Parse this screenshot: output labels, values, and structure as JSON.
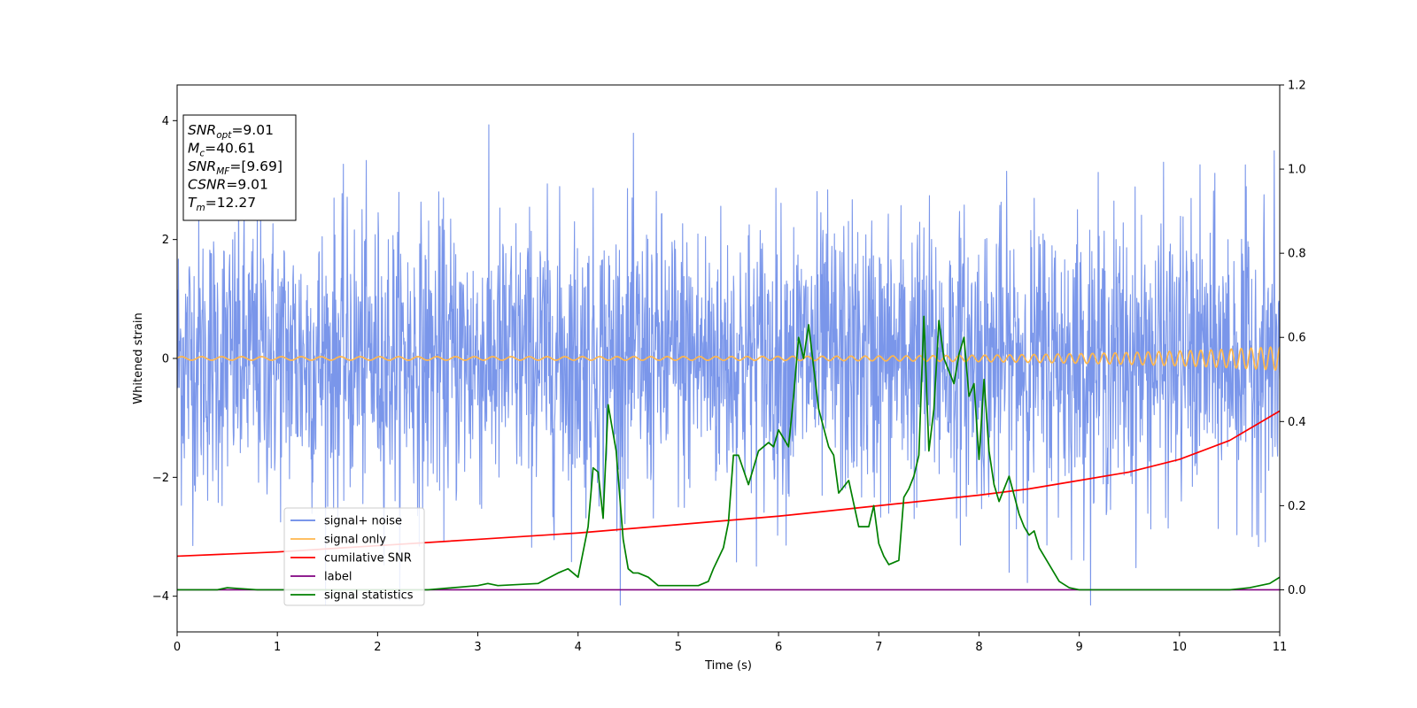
{
  "chart_data": {
    "type": "line",
    "title": "",
    "xlabel": "Time (s)",
    "ylabel": "Whitened strain",
    "xlim": [
      0,
      11
    ],
    "ylim": [
      -4.6,
      4.6
    ],
    "y2lim": [
      -0.1,
      1.2
    ],
    "xticks": [
      "0",
      "1",
      "2",
      "3",
      "4",
      "5",
      "6",
      "7",
      "8",
      "9",
      "10",
      "11"
    ],
    "xtick_values": [
      0,
      1,
      2,
      3,
      4,
      5,
      6,
      7,
      8,
      9,
      10,
      11
    ],
    "yticks": [
      "−4",
      "−2",
      "0",
      "2",
      "4"
    ],
    "ytick_values": [
      -4,
      -2,
      0,
      2,
      4
    ],
    "y2ticks": [
      "0.0",
      "0.2",
      "0.4",
      "0.6",
      "0.8",
      "1.0",
      "1.2"
    ],
    "y2tick_values": [
      0,
      0.2,
      0.4,
      0.6,
      0.8,
      1.0,
      1.2
    ],
    "grid": false,
    "legend_position": "lower-left",
    "info_box": {
      "lines": [
        {
          "var": "SNR",
          "sub": "opt",
          "text": "=9.01"
        },
        {
          "var": "M",
          "sub": "c",
          "text": "=40.61"
        },
        {
          "var": "SNR",
          "sub": "MF",
          "text": "=[9.69]"
        },
        {
          "var": "CSNR",
          "sub": "",
          "text": "=9.01"
        },
        {
          "var": "T",
          "sub": "m",
          "text": "=12.27"
        }
      ]
    },
    "series": [
      {
        "name": "signal+ noise",
        "color": "#4169e1",
        "axis": "left",
        "kind": "noise",
        "amplitude_sd": 1.2,
        "min": -4.15,
        "max": 4.15
      },
      {
        "name": "signal only",
        "color": "#ffb74d",
        "axis": "left",
        "kind": "chirp",
        "amplitude_start": 0.03,
        "amplitude_end": 0.2,
        "freq_start": 5,
        "freq_end": 10.5
      },
      {
        "name": "cumilative SNR",
        "color": "#ff0000",
        "axis": "right",
        "x": [
          0,
          1,
          2,
          3,
          4,
          5,
          6,
          7,
          8,
          8.5,
          9,
          9.5,
          10,
          10.5,
          11
        ],
        "y": [
          0.08,
          0.09,
          0.105,
          0.12,
          0.135,
          0.155,
          0.175,
          0.2,
          0.225,
          0.24,
          0.26,
          0.28,
          0.31,
          0.355,
          0.425
        ]
      },
      {
        "name": "label",
        "color": "#800080",
        "axis": "right",
        "x": [
          0,
          11
        ],
        "y": [
          0,
          0
        ]
      },
      {
        "name": "signal statistics",
        "color": "#008000",
        "axis": "right",
        "x": [
          0,
          0.4,
          0.5,
          0.8,
          1.0,
          2.0,
          2.5,
          3.0,
          3.1,
          3.2,
          3.6,
          3.8,
          3.9,
          4.0,
          4.1,
          4.15,
          4.2,
          4.25,
          4.3,
          4.38,
          4.45,
          4.5,
          4.55,
          4.6,
          4.7,
          4.8,
          5.2,
          5.3,
          5.35,
          5.45,
          5.5,
          5.55,
          5.6,
          5.7,
          5.8,
          5.85,
          5.9,
          5.95,
          6.0,
          6.1,
          6.15,
          6.2,
          6.25,
          6.3,
          6.4,
          6.5,
          6.55,
          6.6,
          6.7,
          6.8,
          6.9,
          6.95,
          7.0,
          7.05,
          7.1,
          7.15,
          7.2,
          7.25,
          7.3,
          7.35,
          7.4,
          7.45,
          7.5,
          7.55,
          7.6,
          7.65,
          7.7,
          7.75,
          7.8,
          7.85,
          7.9,
          7.95,
          8.0,
          8.05,
          8.1,
          8.15,
          8.2,
          8.3,
          8.4,
          8.45,
          8.5,
          8.55,
          8.6,
          8.7,
          8.8,
          8.9,
          9.0,
          9.1,
          9.5,
          10.0,
          10.5,
          10.7,
          10.9,
          11.0
        ],
        "y": [
          0,
          0,
          0.005,
          0,
          0,
          0,
          0,
          0.01,
          0.015,
          0.01,
          0.015,
          0.04,
          0.05,
          0.03,
          0.15,
          0.29,
          0.28,
          0.17,
          0.44,
          0.33,
          0.12,
          0.05,
          0.04,
          0.04,
          0.03,
          0.01,
          0.01,
          0.02,
          0.05,
          0.1,
          0.16,
          0.32,
          0.32,
          0.25,
          0.33,
          0.34,
          0.35,
          0.34,
          0.38,
          0.34,
          0.46,
          0.6,
          0.55,
          0.63,
          0.43,
          0.34,
          0.32,
          0.23,
          0.26,
          0.15,
          0.15,
          0.2,
          0.11,
          0.08,
          0.06,
          0.065,
          0.07,
          0.22,
          0.24,
          0.27,
          0.32,
          0.65,
          0.33,
          0.43,
          0.64,
          0.55,
          0.52,
          0.49,
          0.56,
          0.6,
          0.46,
          0.49,
          0.31,
          0.5,
          0.33,
          0.25,
          0.21,
          0.27,
          0.18,
          0.15,
          0.13,
          0.14,
          0.1,
          0.06,
          0.02,
          0.005,
          0,
          0,
          0,
          0,
          0,
          0.005,
          0.015,
          0.03
        ]
      }
    ]
  }
}
